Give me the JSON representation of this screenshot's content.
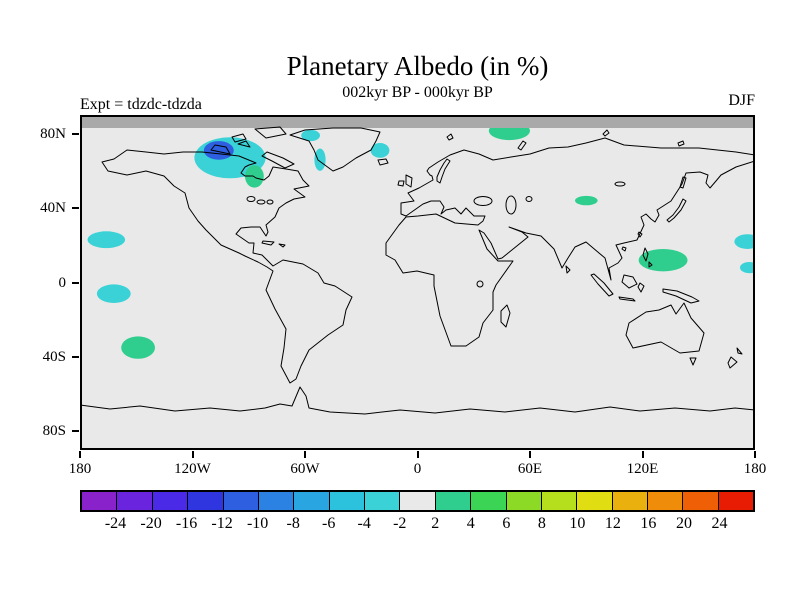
{
  "title": "Planetary Albedo (in %)",
  "subtitle": "002kyr BP - 000kyr BP",
  "expt_label": "Expt = tdzdc-tdzda",
  "season_label": "DJF",
  "axes": {
    "lat_ticks": [
      {
        "label": "80N",
        "lat": 80
      },
      {
        "label": "40N",
        "lat": 40
      },
      {
        "label": "0",
        "lat": 0
      },
      {
        "label": "40S",
        "lat": -40
      },
      {
        "label": "80S",
        "lat": -80
      }
    ],
    "lon_ticks": [
      {
        "label": "180",
        "lon": -180
      },
      {
        "label": "120W",
        "lon": -120
      },
      {
        "label": "60W",
        "lon": -60
      },
      {
        "label": "0",
        "lon": 0
      },
      {
        "label": "60E",
        "lon": 60
      },
      {
        "label": "120E",
        "lon": 120
      },
      {
        "label": "180",
        "lon": 180
      }
    ]
  },
  "colorbar": {
    "tick_labels": [
      "-24",
      "-20",
      "-16",
      "-12",
      "-10",
      "-8",
      "-6",
      "-4",
      "-2",
      "2",
      "4",
      "6",
      "8",
      "10",
      "12",
      "16",
      "20",
      "24"
    ],
    "colors": [
      "#8a22cc",
      "#6a24dd",
      "#4a2ae6",
      "#2f35df",
      "#2d5fe0",
      "#2b82e2",
      "#29a5e2",
      "#2cc2de",
      "#3ad2d6",
      "#e9e9e9",
      "#2fce8e",
      "#3cd455",
      "#8cd926",
      "#b5de1c",
      "#e0dd12",
      "#eab10e",
      "#ef8c0a",
      "#ee5f06",
      "#e81c02"
    ]
  },
  "map": {
    "ocean_color": "#e9e9e9",
    "masked_band_color": "#a9a9a9",
    "outline_color": "#000000"
  },
  "chart_data": {
    "type": "heatmap",
    "title": "Planetary Albedo (in %)",
    "subtitle": "002kyr BP - 000kyr BP",
    "experiment": "tdzdc-tdzda",
    "season": "DJF",
    "units": "%",
    "projection": "equirectangular",
    "lon_range": [
      -180,
      180
    ],
    "lat_range": [
      -90,
      90
    ],
    "contour_levels": [
      -24,
      -20,
      -16,
      -12,
      -10,
      -8,
      -6,
      -4,
      -2,
      2,
      4,
      6,
      8,
      10,
      12,
      16,
      20,
      24
    ],
    "anomaly_patches": [
      {
        "region": "Canadian Arctic",
        "lon": -100,
        "lat": 67,
        "rx_deg": 19,
        "ry_deg": 11,
        "value_bin": "-4 to -2",
        "color": "#3ad2d6"
      },
      {
        "region": "Baffin Foxe Basin",
        "lon": -106,
        "lat": 71,
        "rx_deg": 8,
        "ry_deg": 5,
        "value_bin": "-12 to -10",
        "color": "#2d5fe0"
      },
      {
        "region": "Hudson Bay East",
        "lon": -87,
        "lat": 57,
        "rx_deg": 5,
        "ry_deg": 6,
        "value_bin": "2 to 4",
        "color": "#2fce8e"
      },
      {
        "region": "Ellesmere North",
        "lon": -57,
        "lat": 79,
        "rx_deg": 5,
        "ry_deg": 3,
        "value_bin": "-4 to -2",
        "color": "#3ad2d6"
      },
      {
        "region": "Davis Strait",
        "lon": -52,
        "lat": 66,
        "rx_deg": 3,
        "ry_deg": 6,
        "value_bin": "-4 to -2",
        "color": "#3ad2d6"
      },
      {
        "region": "East Greenland Sea",
        "lon": -20,
        "lat": 71,
        "rx_deg": 5,
        "ry_deg": 4,
        "value_bin": "-4 to -2",
        "color": "#3ad2d6"
      },
      {
        "region": "Barents Sea",
        "lon": 49,
        "lat": 81.5,
        "rx_deg": 11,
        "ry_deg": 5,
        "value_bin": "2 to 4",
        "color": "#2fce8e"
      },
      {
        "region": "North Pacific",
        "lon": -166,
        "lat": 23,
        "rx_deg": 10,
        "ry_deg": 4.5,
        "value_bin": "-4 to -2",
        "color": "#3ad2d6"
      },
      {
        "region": "Central Pacific",
        "lon": -162,
        "lat": -6,
        "rx_deg": 9,
        "ry_deg": 5,
        "value_bin": "-4 to -2",
        "color": "#3ad2d6"
      },
      {
        "region": "South Pacific",
        "lon": -149,
        "lat": -35,
        "rx_deg": 9,
        "ry_deg": 6,
        "value_bin": "2 to 4",
        "color": "#2fce8e"
      },
      {
        "region": "Philippine Sea",
        "lon": 131,
        "lat": 12,
        "rx_deg": 13,
        "ry_deg": 6,
        "value_bin": "2 to 4",
        "color": "#2fce8e"
      },
      {
        "region": "NW Pacific Edge",
        "lon": 176,
        "lat": 22,
        "rx_deg": 7,
        "ry_deg": 4,
        "value_bin": "-4 to -2",
        "color": "#3ad2d6"
      },
      {
        "region": "West Pacific Edge",
        "lon": 177,
        "lat": 8,
        "rx_deg": 5,
        "ry_deg": 3,
        "value_bin": "-4 to -2",
        "color": "#3ad2d6"
      },
      {
        "region": "Central Asia",
        "lon": 90,
        "lat": 44,
        "rx_deg": 6,
        "ry_deg": 2.5,
        "value_bin": "2 to 4",
        "color": "#2fce8e"
      }
    ]
  }
}
